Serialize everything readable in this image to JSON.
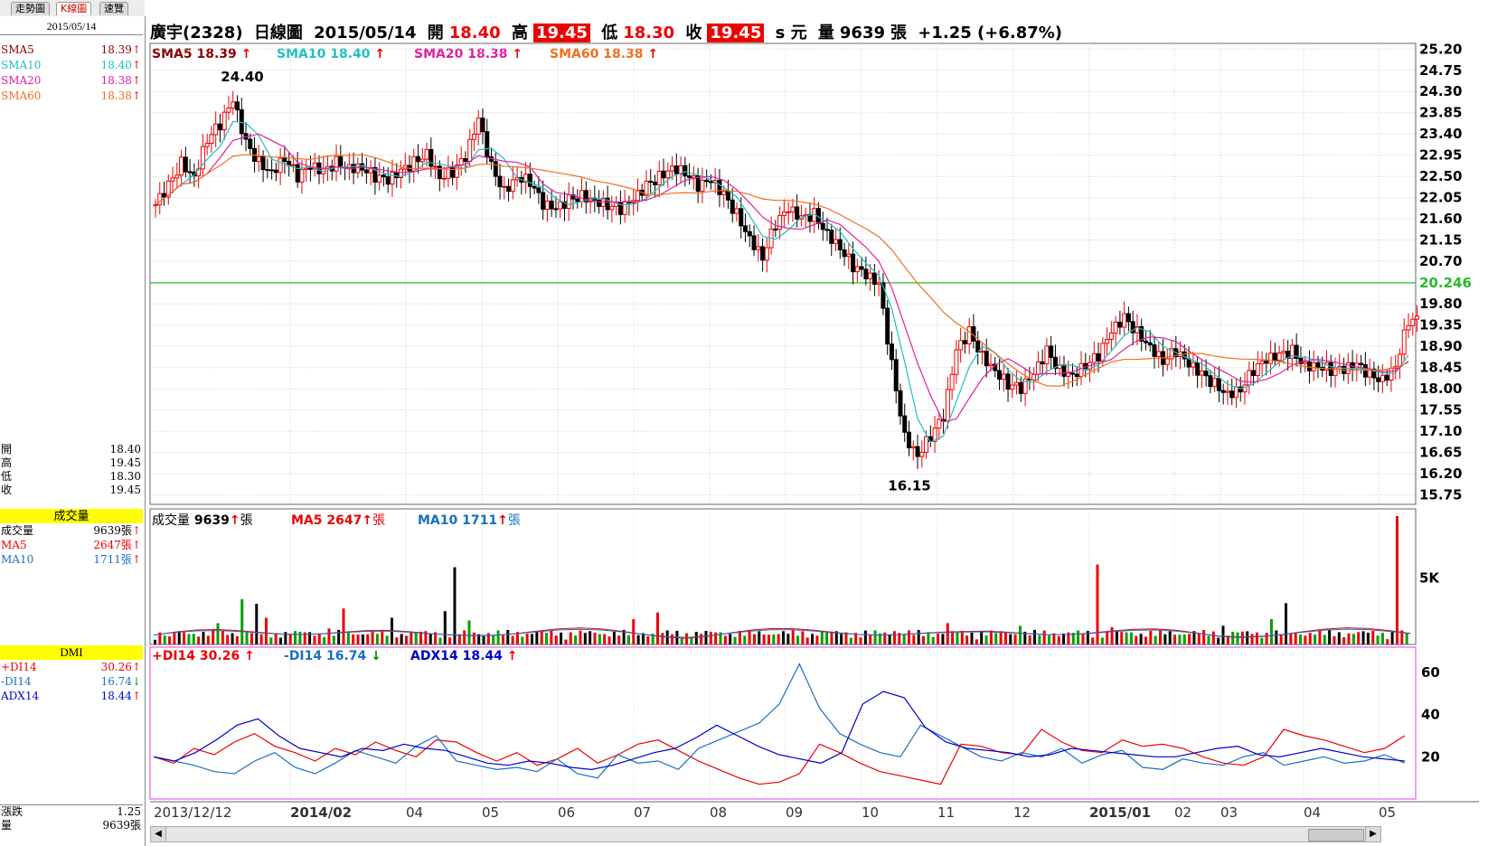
{
  "tabs": [
    "走勢圖",
    "K線圖",
    "速覽"
  ],
  "active_tab": "K線圖",
  "left_panel": {
    "date": "2015/05/14",
    "sma": [
      {
        "name": "SMA5",
        "value": "18.39",
        "color": "#8b0000"
      },
      {
        "name": "SMA10",
        "value": "18.40",
        "color": "#20c0c0"
      },
      {
        "name": "SMA20",
        "value": "18.38",
        "color": "#e020a0"
      },
      {
        "name": "SMA60",
        "value": "18.38",
        "color": "#f07020"
      }
    ],
    "ohlc": [
      {
        "name": "開",
        "value": "18.40"
      },
      {
        "name": "高",
        "value": "19.45"
      },
      {
        "name": "低",
        "value": "18.30"
      },
      {
        "name": "收",
        "value": "19.45"
      }
    ],
    "vol_title": "成交量",
    "vol": [
      {
        "name": "成交量",
        "value": "9639張",
        "color": "#000"
      },
      {
        "name": "MA5",
        "value": "2647張",
        "color": "#e00"
      },
      {
        "name": "MA10",
        "value": "1711張",
        "color": "#1a6fc0"
      }
    ],
    "dmi_title": "DMI",
    "dmi": [
      {
        "name": "+DI14",
        "value": "30.26",
        "color": "#e00",
        "dir": "up"
      },
      {
        "name": "-DI14",
        "value": "16.74",
        "color": "#1a6fc0",
        "dir": "down"
      },
      {
        "name": "ADX14",
        "value": "18.44",
        "color": "#0000cc",
        "dir": "up"
      }
    ],
    "bottom": [
      {
        "name": "漲跌",
        "value": "1.25"
      },
      {
        "name": "量",
        "value": "9639張"
      }
    ]
  },
  "header": {
    "stock": "廣宇(2328)",
    "type": "日線圖",
    "date": "2015/05/14",
    "open_label": "開",
    "open": "18.40",
    "high_label": "高",
    "high": "19.45",
    "low_label": "低",
    "low": "18.30",
    "close_label": "收",
    "close": "19.45",
    "unit": "s 元",
    "vol_label": "量",
    "vol": "9639",
    "vol_unit": "張",
    "change": "+1.25 (+6.87%)"
  },
  "indicators": {
    "sma5": "SMA5 18.39",
    "sma10": "SMA10 18.40",
    "sma20": "SMA20 18.38",
    "sma60": "SMA60 18.38",
    "vol": "成交量",
    "vol_val": "9639",
    "vol_unit": "張",
    "vma5": "MA5 2647",
    "vma10": "MA10 1711",
    "pdi": "+DI14 30.26",
    "mdi": "-DI14 16.74",
    "adx": "ADX14 18.44"
  },
  "chart_data": {
    "type": "candlestick",
    "price_axis": [
      "25.20",
      "24.75",
      "24.30",
      "23.85",
      "23.40",
      "22.95",
      "22.50",
      "22.05",
      "21.60",
      "21.15",
      "20.70",
      "20.246",
      "19.80",
      "19.35",
      "18.90",
      "18.45",
      "18.00",
      "17.55",
      "17.10",
      "16.65",
      "16.20",
      "15.75"
    ],
    "price_ylim": [
      15.55,
      25.32
    ],
    "hline": {
      "value": 20.246,
      "label": "20.246",
      "color": "#2ab82a"
    },
    "annotations": [
      {
        "label": "24.40",
        "value": 24.4
      },
      {
        "label": "16.15",
        "value": 16.15
      }
    ],
    "x_labels": [
      "2013/12/12",
      "2014/02",
      "04",
      "05",
      "06",
      "07",
      "08",
      "09",
      "10",
      "11",
      "12",
      "2015/01",
      "02",
      "03",
      "04",
      "05"
    ],
    "close_path": [
      21.9,
      22.3,
      22.8,
      22.5,
      23.3,
      23.6,
      24.1,
      23.2,
      22.8,
      22.6,
      22.9,
      22.5,
      22.7,
      22.6,
      22.8,
      22.7,
      22.7,
      22.5,
      22.4,
      22.6,
      22.8,
      23.0,
      22.5,
      22.6,
      22.9,
      23.7,
      22.7,
      22.2,
      22.5,
      22.4,
      21.9,
      21.8,
      22.0,
      22.1,
      22.0,
      21.9,
      21.8,
      22.0,
      22.3,
      22.5,
      22.7,
      22.6,
      22.3,
      22.4,
      22.1,
      21.7,
      21.2,
      20.8,
      21.5,
      21.8,
      21.6,
      21.7,
      21.3,
      21.0,
      20.6,
      20.4,
      20.2,
      18.5,
      17.0,
      16.6,
      17.0,
      17.4,
      18.8,
      19.2,
      18.7,
      18.4,
      18.1,
      18.0,
      18.3,
      18.8,
      18.4,
      18.3,
      18.5,
      18.7,
      19.2,
      19.5,
      19.2,
      18.9,
      18.6,
      18.8,
      18.5,
      18.3,
      18.1,
      17.9,
      18.0,
      18.4,
      18.6,
      18.7,
      18.8,
      18.5,
      18.5,
      18.4,
      18.4,
      18.5,
      18.3,
      18.2,
      18.5,
      19.45
    ],
    "vol_axis": [
      {
        "label": "5K",
        "value": 5000
      }
    ],
    "vol_ylim": [
      0,
      9639
    ],
    "volume_peaks": [
      {
        "x": 0.01,
        "v": 600
      },
      {
        "x": 0.05,
        "v": 1600
      },
      {
        "x": 0.07,
        "v": 3400
      },
      {
        "x": 0.08,
        "v": 3050
      },
      {
        "x": 0.09,
        "v": 2000
      },
      {
        "x": 0.14,
        "v": 1200
      },
      {
        "x": 0.15,
        "v": 2700
      },
      {
        "x": 0.19,
        "v": 2000
      },
      {
        "x": 0.23,
        "v": 2500
      },
      {
        "x": 0.24,
        "v": 5800
      },
      {
        "x": 0.25,
        "v": 1800
      },
      {
        "x": 0.38,
        "v": 1900
      },
      {
        "x": 0.4,
        "v": 2400
      },
      {
        "x": 0.59,
        "v": 1000
      },
      {
        "x": 0.63,
        "v": 1600
      },
      {
        "x": 0.69,
        "v": 1400
      },
      {
        "x": 0.75,
        "v": 6000
      },
      {
        "x": 0.76,
        "v": 1300
      },
      {
        "x": 0.85,
        "v": 1400
      },
      {
        "x": 0.89,
        "v": 1900
      },
      {
        "x": 0.9,
        "v": 3100
      },
      {
        "x": 0.99,
        "v": 9639
      }
    ],
    "dmi_axis": [
      {
        "label": "60",
        "value": 60
      },
      {
        "label": "40",
        "value": 40
      },
      {
        "label": "20",
        "value": 20
      }
    ],
    "dmi_ylim": [
      0,
      72
    ],
    "pdi": [
      20,
      17,
      24,
      21,
      27,
      31,
      25,
      22,
      18,
      24,
      21,
      27,
      23,
      20,
      28,
      27,
      22,
      18,
      22,
      16,
      19,
      24,
      17,
      21,
      26,
      28,
      23,
      18,
      14,
      10,
      7,
      8,
      12,
      26,
      22,
      17,
      13,
      11,
      9,
      7,
      26,
      25,
      22,
      21,
      33,
      27,
      23,
      22,
      28,
      25,
      26,
      24,
      20,
      17,
      16,
      20,
      33,
      30,
      28,
      25,
      22,
      24,
      30
    ],
    "mdi": [
      20,
      18,
      16,
      13,
      12,
      18,
      22,
      15,
      12,
      17,
      23,
      20,
      17,
      25,
      30,
      18,
      16,
      14,
      15,
      13,
      19,
      12,
      10,
      21,
      17,
      18,
      14,
      24,
      28,
      32,
      36,
      45,
      64,
      43,
      31,
      26,
      22,
      20,
      35,
      30,
      25,
      20,
      18,
      22,
      20,
      24,
      17,
      21,
      23,
      15,
      14,
      19,
      17,
      16,
      20,
      22,
      16,
      18,
      20,
      17,
      18,
      21,
      17
    ],
    "adx": [
      20,
      18,
      22,
      28,
      35,
      38,
      30,
      24,
      22,
      20,
      24,
      23,
      26,
      24,
      23,
      20,
      17,
      16,
      18,
      17,
      15,
      14,
      16,
      19,
      22,
      24,
      29,
      35,
      30,
      25,
      21,
      19,
      17,
      22,
      45,
      51,
      48,
      34,
      27,
      24,
      23,
      22,
      20,
      21,
      24,
      23,
      22,
      21,
      20,
      20,
      22,
      24,
      25,
      21,
      20,
      22,
      24,
      22,
      20,
      19,
      18
    ]
  }
}
